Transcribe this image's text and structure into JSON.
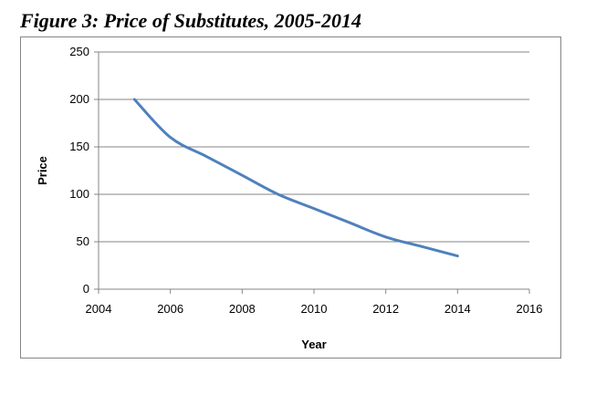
{
  "figure_title": "Figure 3:  Price of Substitutes, 2005-2014",
  "chart_data": {
    "type": "line",
    "title": "",
    "xlabel": "Year",
    "ylabel": "Price",
    "xlim": [
      2004,
      2016
    ],
    "ylim": [
      0,
      250
    ],
    "xticks": [
      2004,
      2006,
      2008,
      2010,
      2012,
      2014,
      2016
    ],
    "yticks": [
      0,
      50,
      100,
      150,
      200,
      250
    ],
    "grid": "horizontal",
    "legend": "none",
    "series": [
      {
        "name": "Price",
        "color": "#4f81bd",
        "x": [
          2005,
          2006,
          2007,
          2008,
          2009,
          2010,
          2011,
          2012,
          2013,
          2014
        ],
        "y": [
          200,
          160,
          140,
          120,
          100,
          85,
          70,
          55,
          45,
          35
        ]
      }
    ]
  }
}
